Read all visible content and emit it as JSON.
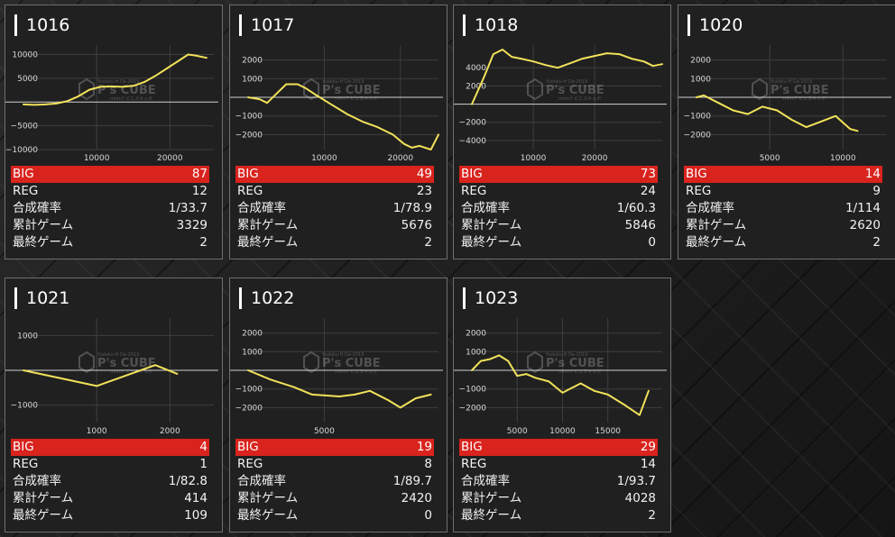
{
  "labels": {
    "big": "BIG",
    "reg": "REG",
    "rate": "合成確率",
    "total": "累計ゲーム",
    "last": "最終ゲーム"
  },
  "watermark": {
    "small": "Yudoku-H Da-2019",
    "brand": "P's CUBE",
    "sub": "mhm? ピエスキュボ"
  },
  "colors": {
    "line": "#f2e25a",
    "big_bar": "#d9231d",
    "border": "#6f6f6f"
  },
  "machines": [
    {
      "id": "1016",
      "stats": {
        "big": "87",
        "reg": "12",
        "rate": "1/33.7",
        "total": "3329",
        "last": "2"
      },
      "chart_data": {
        "type": "line",
        "ylim": [
          -10000,
          12000
        ],
        "xlim": [
          0,
          26000
        ],
        "yticks": [
          10000,
          5000,
          -5000,
          -10000
        ],
        "ytick_labels": [
          "10000",
          "5000",
          "−5000",
          "−10000"
        ],
        "xticks": [
          10000,
          20000
        ],
        "xtick_labels": [
          "10000",
          "20000"
        ],
        "x": [
          0,
          1500,
          3000,
          4500,
          6000,
          7500,
          9000,
          10500,
          12000,
          13500,
          15000,
          16500,
          18000,
          19500,
          21000,
          22500,
          23500,
          25000
        ],
        "y": [
          -500,
          -600,
          -500,
          -300,
          200,
          1200,
          2600,
          3200,
          3300,
          3200,
          3400,
          4200,
          5500,
          7000,
          8500,
          10000,
          9800,
          9300
        ]
      }
    },
    {
      "id": "1017",
      "stats": {
        "big": "49",
        "reg": "23",
        "rate": "1/78.9",
        "total": "5676",
        "last": "2"
      },
      "chart_data": {
        "type": "line",
        "ylim": [
          -2800,
          2800
        ],
        "xlim": [
          0,
          25000
        ],
        "yticks": [
          2000,
          1000,
          -1000,
          -2000
        ],
        "ytick_labels": [
          "2000",
          "1000",
          "−1000",
          "−2000"
        ],
        "xticks": [
          10000,
          20000
        ],
        "xtick_labels": [
          "10000",
          "20000"
        ],
        "x": [
          0,
          1500,
          2500,
          3500,
          5000,
          6500,
          7500,
          9000,
          11000,
          13000,
          15000,
          17000,
          19000,
          20500,
          21500,
          22500,
          24000,
          25000
        ],
        "y": [
          0,
          -100,
          -300,
          100,
          700,
          700,
          500,
          100,
          -400,
          -900,
          -1300,
          -1600,
          -2000,
          -2500,
          -2700,
          -2600,
          -2800,
          -2000
        ]
      }
    },
    {
      "id": "1018",
      "stats": {
        "big": "73",
        "reg": "24",
        "rate": "1/60.3",
        "total": "5846",
        "last": "0"
      },
      "chart_data": {
        "type": "line",
        "ylim": [
          -5000,
          6500
        ],
        "xlim": [
          0,
          31000
        ],
        "yticks": [
          4000,
          2000,
          -2000,
          -4000
        ],
        "ytick_labels": [
          "4000",
          "2000",
          "−2000",
          "−4000"
        ],
        "xticks": [
          10000,
          20000
        ],
        "xtick_labels": [
          "10000",
          "20000"
        ],
        "x": [
          0,
          2000,
          3500,
          5000,
          6500,
          8000,
          10000,
          12000,
          14000,
          16000,
          18000,
          20000,
          22000,
          24000,
          26000,
          28000,
          29500,
          31000
        ],
        "y": [
          0,
          3000,
          5500,
          6000,
          5200,
          5000,
          4700,
          4300,
          4000,
          4500,
          5000,
          5300,
          5600,
          5500,
          5000,
          4700,
          4200,
          4400
        ]
      }
    },
    {
      "id": "1020",
      "stats": {
        "big": "14",
        "reg": "9",
        "rate": "1/114",
        "total": "2620",
        "last": "2"
      },
      "chart_data": {
        "type": "line",
        "ylim": [
          -2800,
          2800
        ],
        "xlim": [
          0,
          13000
        ],
        "yticks": [
          2000,
          1000,
          -1000,
          -2000
        ],
        "ytick_labels": [
          "2000",
          "1000",
          "−1000",
          "−2000"
        ],
        "xticks": [
          5000,
          10000
        ],
        "xtick_labels": [
          "5000",
          "10000"
        ],
        "x": [
          0,
          500,
          1500,
          2500,
          3500,
          4500,
          5500,
          6500,
          7500,
          8500,
          9500,
          10500,
          11000
        ],
        "y": [
          0,
          100,
          -300,
          -700,
          -900,
          -500,
          -700,
          -1200,
          -1600,
          -1300,
          -1000,
          -1700,
          -1800
        ]
      }
    },
    {
      "id": "1021",
      "stats": {
        "big": "4",
        "reg": "1",
        "rate": "1/82.8",
        "total": "414",
        "last": "109"
      },
      "chart_data": {
        "type": "line",
        "ylim": [
          -1500,
          1500
        ],
        "xlim": [
          0,
          2600
        ],
        "yticks": [
          1000,
          -1000
        ],
        "ytick_labels": [
          "1000",
          "−1000"
        ],
        "xticks": [
          1000,
          2000
        ],
        "xtick_labels": [
          "1000",
          "2000"
        ],
        "x": [
          0,
          1000,
          1800,
          2100
        ],
        "y": [
          0,
          -450,
          150,
          -100
        ]
      }
    },
    {
      "id": "1022",
      "stats": {
        "big": "19",
        "reg": "8",
        "rate": "1/89.7",
        "total": "2420",
        "last": "0"
      },
      "chart_data": {
        "type": "line",
        "ylim": [
          -2800,
          2800
        ],
        "xlim": [
          0,
          12500
        ],
        "yticks": [
          2000,
          1000,
          -1000,
          -2000
        ],
        "ytick_labels": [
          "2000",
          "1000",
          "−1000",
          "−2000"
        ],
        "xticks": [
          5000
        ],
        "xtick_labels": [
          "5000"
        ],
        "x": [
          0,
          1500,
          3000,
          4200,
          6000,
          7000,
          8000,
          9200,
          10000,
          11000,
          12000
        ],
        "y": [
          0,
          -500,
          -900,
          -1300,
          -1400,
          -1300,
          -1100,
          -1600,
          -2000,
          -1500,
          -1300
        ]
      }
    },
    {
      "id": "1023",
      "stats": {
        "big": "29",
        "reg": "14",
        "rate": "1/93.7",
        "total": "4028",
        "last": "2"
      },
      "chart_data": {
        "type": "line",
        "ylim": [
          -2800,
          2800
        ],
        "xlim": [
          0,
          21000
        ],
        "yticks": [
          2000,
          1000,
          -1000,
          -2000
        ],
        "ytick_labels": [
          "2000",
          "1000",
          "−1000",
          "−2000"
        ],
        "xticks": [
          5000,
          10000,
          15000
        ],
        "xtick_labels": [
          "5000",
          "10000",
          "15000"
        ],
        "x": [
          0,
          1000,
          2000,
          3000,
          4000,
          5000,
          6000,
          7000,
          8500,
          10000,
          12000,
          13500,
          15000,
          17000,
          18500,
          19500
        ],
        "y": [
          0,
          500,
          600,
          800,
          500,
          -300,
          -200,
          -400,
          -600,
          -1200,
          -700,
          -1100,
          -1300,
          -1900,
          -2400,
          -1100
        ]
      }
    }
  ]
}
